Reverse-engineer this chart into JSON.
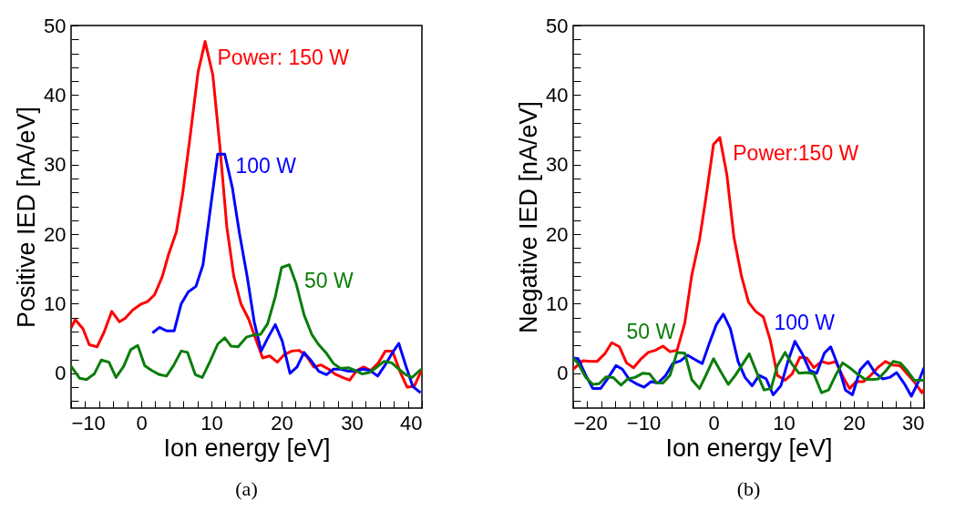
{
  "chart_data": [
    {
      "type": "line",
      "xlabel": "Ion energy [eV]",
      "ylabel": "Positive IED [nA/eV]",
      "annotations": [
        "(a)"
      ],
      "xlim": [
        -10,
        40
      ],
      "ylim": [
        -5,
        50
      ],
      "xticks": [
        {
          "value": -10,
          "label": "−10"
        },
        {
          "value": -8,
          "label": null
        },
        {
          "value": -6,
          "label": null
        },
        {
          "value": -4,
          "label": null
        },
        {
          "value": -2,
          "label": null
        },
        0,
        {
          "value": 2,
          "label": null
        },
        {
          "value": 4,
          "label": null
        },
        {
          "value": 6,
          "label": null
        },
        {
          "value": 8,
          "label": null
        },
        10,
        {
          "value": 12,
          "label": null
        },
        {
          "value": 14,
          "label": null
        },
        {
          "value": 16,
          "label": null
        },
        {
          "value": 18,
          "label": null
        },
        20,
        {
          "value": 22,
          "label": null
        },
        {
          "value": 24,
          "label": null
        },
        {
          "value": 26,
          "label": null
        },
        {
          "value": 28,
          "label": null
        },
        30,
        {
          "value": 32,
          "label": null
        },
        {
          "value": 34,
          "label": null
        },
        {
          "value": 36,
          "label": null
        },
        {
          "value": 38,
          "label": null
        },
        40
      ],
      "yticks": [
        {
          "value": -4,
          "label": null
        },
        {
          "value": -2,
          "label": null
        },
        0,
        {
          "value": 2,
          "label": null
        },
        {
          "value": 4,
          "label": null
        },
        {
          "value": 6,
          "label": null
        },
        {
          "value": 8,
          "label": null
        },
        10,
        {
          "value": 12,
          "label": null
        },
        {
          "value": 14,
          "label": null
        },
        {
          "value": 16,
          "label": null
        },
        {
          "value": 18,
          "label": null
        },
        20,
        {
          "value": 22,
          "label": null
        },
        {
          "value": 24,
          "label": null
        },
        {
          "value": 26,
          "label": null
        },
        {
          "value": 28,
          "label": null
        },
        30,
        {
          "value": 32,
          "label": null
        },
        {
          "value": 34,
          "label": null
        },
        {
          "value": 36,
          "label": null
        },
        {
          "value": 38,
          "label": null
        },
        40,
        {
          "value": 42,
          "label": null
        },
        {
          "value": 44,
          "label": null
        },
        {
          "value": 46,
          "label": null
        },
        {
          "value": 48,
          "label": null
        },
        50
      ],
      "series": [
        {
          "name": "Power: 150 W",
          "color": "#ff0000",
          "x": [
            -10,
            -9.4,
            -8.3,
            -7.4,
            -6.3,
            -5.3,
            -4.2,
            -3.1,
            -2.3,
            -1.2,
            -0.1,
            0.9,
            1.9,
            3.0,
            3.9,
            5.0,
            5.9,
            6.9,
            8.1,
            9.1,
            10.2,
            11.2,
            12.2,
            13.2,
            14.2,
            15.3,
            16.3,
            17.3,
            18.3,
            19.4,
            20.4,
            21.5,
            22.5,
            23.6,
            24.6,
            25.6,
            26.7,
            27.6,
            28.7,
            29.7,
            30.7,
            31.7,
            32.7,
            33.8,
            34.8,
            35.8,
            36.9,
            37.9,
            38.9,
            40.0
          ],
          "values": [
            6.5,
            7.7,
            6.4,
            4.1,
            3.8,
            5.9,
            8.9,
            7.4,
            7.9,
            9.1,
            9.9,
            10.3,
            11.3,
            13.9,
            17.1,
            20.3,
            25.8,
            33.5,
            43.3,
            47.7,
            42.9,
            32.7,
            21.0,
            13.9,
            10.0,
            7.8,
            5.0,
            2.2,
            2.5,
            1.6,
            2.7,
            3.2,
            3.3,
            2.4,
            0.9,
            1.2,
            0.6,
            -0.1,
            -0.6,
            -1.0,
            0.4,
            0.9,
            0.4,
            1.5,
            3.2,
            3.2,
            0.2,
            -2.0,
            -1.9,
            0.6
          ]
        },
        {
          "name": "100 W",
          "color": "#0000ff",
          "x": [
            1.6,
            2.6,
            3.6,
            4.7,
            5.7,
            6.7,
            7.8,
            8.8,
            9.9,
            10.9,
            11.9,
            13.0,
            14.0,
            15.1,
            16.1,
            17.1,
            18.0,
            19.1,
            20.1,
            21.2,
            22.2,
            23.2,
            24.3,
            25.3,
            26.4,
            27.4,
            28.4,
            29.5,
            30.5,
            31.6,
            32.6,
            33.7,
            34.7,
            35.7,
            36.7,
            37.7,
            38.7,
            39.8
          ],
          "values": [
            5.8,
            6.6,
            6.1,
            6.1,
            10.0,
            11.7,
            12.5,
            15.6,
            24.0,
            31.5,
            31.5,
            26.6,
            20.1,
            13.9,
            7.4,
            3.2,
            5.0,
            7.0,
            4.6,
            0.0,
            0.9,
            3.0,
            1.7,
            0.3,
            -0.2,
            0.6,
            0.6,
            0.3,
            0.3,
            0.6,
            0.4,
            -0.4,
            1.1,
            2.8,
            4.3,
            1.1,
            -1.9,
            -2.8
          ]
        },
        {
          "name": "50 W",
          "color": "#0a7d0a",
          "x": [
            -10,
            -8.8,
            -7.8,
            -6.7,
            -5.7,
            -4.6,
            -3.6,
            -2.5,
            -1.5,
            -0.5,
            0.5,
            1.5,
            2.6,
            3.6,
            4.6,
            5.7,
            6.6,
            7.7,
            8.7,
            9.8,
            10.9,
            11.9,
            12.8,
            13.8,
            15.0,
            16.0,
            17.0,
            18.0,
            19.1,
            20.0,
            21.1,
            22.1,
            23.2,
            24.3,
            25.3,
            26.3,
            27.4,
            28.4,
            29.5,
            30.5,
            31.5,
            32.5,
            33.6,
            34.6,
            35.7,
            36.7,
            37.7,
            38.6,
            39.9
          ],
          "values": [
            1.0,
            -0.7,
            -0.9,
            -0.1,
            1.9,
            1.6,
            -0.6,
            1.0,
            3.4,
            4.0,
            1.1,
            0.4,
            -0.2,
            -0.4,
            1.1,
            3.2,
            3.0,
            -0.2,
            -0.6,
            1.7,
            4.2,
            5.1,
            3.9,
            3.8,
            5.2,
            5.5,
            5.6,
            7.1,
            11.0,
            15.2,
            15.6,
            12.8,
            8.4,
            5.6,
            4.1,
            3.0,
            1.4,
            0.7,
            0.8,
            0.4,
            -0.1,
            0.1,
            0.9,
            1.7,
            1.5,
            0.6,
            -0.2,
            -0.6,
            0.6
          ]
        }
      ]
    },
    {
      "type": "line",
      "xlabel": "Ion energy [eV]",
      "ylabel": "Negative IED [nA/eV]",
      "annotations": [
        "(b)"
      ],
      "xlim": [
        -20,
        30
      ],
      "ylim": [
        -5,
        50
      ],
      "xticks": [
        {
          "value": -20,
          "label": "−20"
        },
        {
          "value": -18,
          "label": null
        },
        {
          "value": -16,
          "label": null
        },
        {
          "value": -14,
          "label": null
        },
        {
          "value": -12,
          "label": null
        },
        {
          "value": -10,
          "label": "−10"
        },
        {
          "value": -8,
          "label": null
        },
        {
          "value": -6,
          "label": null
        },
        {
          "value": -4,
          "label": null
        },
        {
          "value": -2,
          "label": null
        },
        0,
        {
          "value": 2,
          "label": null
        },
        {
          "value": 4,
          "label": null
        },
        {
          "value": 6,
          "label": null
        },
        {
          "value": 8,
          "label": null
        },
        10,
        {
          "value": 12,
          "label": null
        },
        {
          "value": 14,
          "label": null
        },
        {
          "value": 16,
          "label": null
        },
        {
          "value": 18,
          "label": null
        },
        20,
        {
          "value": 22,
          "label": null
        },
        {
          "value": 24,
          "label": null
        },
        {
          "value": 26,
          "label": null
        },
        {
          "value": 28,
          "label": null
        },
        30
      ],
      "yticks": [
        {
          "value": -4,
          "label": null
        },
        {
          "value": -2,
          "label": null
        },
        0,
        {
          "value": 2,
          "label": null
        },
        {
          "value": 4,
          "label": null
        },
        {
          "value": 6,
          "label": null
        },
        {
          "value": 8,
          "label": null
        },
        10,
        {
          "value": 12,
          "label": null
        },
        {
          "value": 14,
          "label": null
        },
        {
          "value": 16,
          "label": null
        },
        {
          "value": 18,
          "label": null
        },
        20,
        {
          "value": 22,
          "label": null
        },
        {
          "value": 24,
          "label": null
        },
        {
          "value": 26,
          "label": null
        },
        {
          "value": 28,
          "label": null
        },
        30,
        {
          "value": 32,
          "label": null
        },
        {
          "value": 34,
          "label": null
        },
        {
          "value": 36,
          "label": null
        },
        {
          "value": 38,
          "label": null
        },
        40,
        {
          "value": 42,
          "label": null
        },
        {
          "value": 44,
          "label": null
        },
        {
          "value": 46,
          "label": null
        },
        {
          "value": 48,
          "label": null
        },
        50
      ],
      "series": [
        {
          "name": "Power:150 W",
          "color": "#ff0000",
          "x": [
            -20,
            -18.6,
            -17.6,
            -16.6,
            -15.5,
            -14.5,
            -13.4,
            -12.4,
            -11.4,
            -10.3,
            -9.3,
            -8.3,
            -7.2,
            -6.2,
            -5.2,
            -4.1,
            -3.1,
            -2.0,
            -1.1,
            0.0,
            0.9,
            1.9,
            2.9,
            4.0,
            5.0,
            6.0,
            7.1,
            8.1,
            9.1,
            10.2,
            11.2,
            12.3,
            13.3,
            14.3,
            15.4,
            16.4,
            17.4,
            18.5,
            19.4,
            20.3,
            21.4,
            22.4,
            23.4,
            24.5,
            25.5,
            26.6,
            27.6,
            28.6,
            29.7,
            30.0
          ],
          "values": [
            0.6,
            1.8,
            1.7,
            1.7,
            2.8,
            4.4,
            3.8,
            1.5,
            0.8,
            2.1,
            3.0,
            3.3,
            3.9,
            3.1,
            3.3,
            7.2,
            14.1,
            19.2,
            25.1,
            32.9,
            33.9,
            28.6,
            19.6,
            13.9,
            10.2,
            8.9,
            8.1,
            4.7,
            -0.3,
            -1.0,
            -0.1,
            2.3,
            2.2,
            0.8,
            1.7,
            1.4,
            1.7,
            -0.6,
            -2.2,
            -1.2,
            -1.2,
            -0.3,
            0.8,
            1.7,
            1.2,
            1.1,
            -0.1,
            -1.2,
            -2.8,
            -2.3
          ]
        },
        {
          "name": "100 W",
          "color": "#0000ff",
          "x": [
            -20,
            -19.3,
            -18.2,
            -17.2,
            -16.1,
            -15.1,
            -13.9,
            -13.0,
            -12.0,
            -11.0,
            -9.9,
            -8.9,
            -7.9,
            -6.8,
            -5.8,
            -4.7,
            -3.7,
            -2.7,
            -1.6,
            -0.6,
            0.4,
            1.4,
            2.4,
            3.5,
            4.5,
            5.5,
            6.5,
            7.5,
            8.5,
            9.6,
            10.6,
            11.6,
            12.7,
            13.7,
            14.7,
            15.8,
            16.7,
            17.9,
            18.8,
            19.8,
            20.9,
            22.0,
            23.0,
            24.1,
            25.1,
            26.1,
            27.2,
            28.2,
            29.3,
            30.0
          ],
          "values": [
            2.2,
            2.1,
            -0.3,
            -2.2,
            -2.2,
            -0.8,
            1.1,
            0.6,
            -0.9,
            -1.5,
            -2.0,
            -1.2,
            -1.4,
            -0.3,
            1.4,
            1.8,
            2.6,
            2.0,
            1.4,
            4.3,
            7.0,
            8.5,
            6.4,
            1.7,
            -0.6,
            -1.8,
            -0.3,
            -0.8,
            -3.1,
            -1.8,
            1.7,
            4.6,
            2.7,
            0.4,
            0.0,
            2.9,
            3.8,
            0.7,
            -2.4,
            -3.1,
            0.5,
            1.7,
            0.1,
            -0.8,
            -0.6,
            0.1,
            -1.5,
            -3.3,
            -1.0,
            0.8
          ]
        },
        {
          "name": "50 W",
          "color": "#0a7d0a",
          "x": [
            -20,
            -19.3,
            -18.2,
            -17.2,
            -16.3,
            -15.3,
            -14.3,
            -13.2,
            -12.2,
            -11.2,
            -10.1,
            -9.1,
            -8.1,
            -7.2,
            -6.2,
            -5.2,
            -4.1,
            -3.1,
            -2.0,
            -1.0,
            0.0,
            1.1,
            2.1,
            3.1,
            4.2,
            5.1,
            6.2,
            7.2,
            8.2,
            9.1,
            10.2,
            11.2,
            12.2,
            13.3,
            14.3,
            15.4,
            16.4,
            17.4,
            18.4,
            19.4,
            20.5,
            21.5,
            22.5,
            23.5,
            24.6,
            25.6,
            26.6,
            27.6,
            28.6,
            30.0
          ],
          "values": [
            2.2,
            1.4,
            -0.6,
            -1.6,
            -1.5,
            -0.5,
            -0.6,
            -1.7,
            -0.8,
            -0.6,
            0.0,
            -0.1,
            -1.4,
            -1.4,
            -0.3,
            3.0,
            2.9,
            -0.9,
            -2.2,
            -0.1,
            2.1,
            0.1,
            -1.6,
            -0.3,
            1.4,
            2.8,
            0.0,
            -2.4,
            -2.2,
            1.1,
            3.0,
            1.3,
            0.0,
            0.1,
            -0.1,
            -2.8,
            -2.4,
            -0.3,
            1.5,
            0.8,
            -0.1,
            -0.8,
            -0.9,
            -0.8,
            0.4,
            1.7,
            1.5,
            0.4,
            -1.0,
            -1.0
          ]
        }
      ]
    }
  ]
}
